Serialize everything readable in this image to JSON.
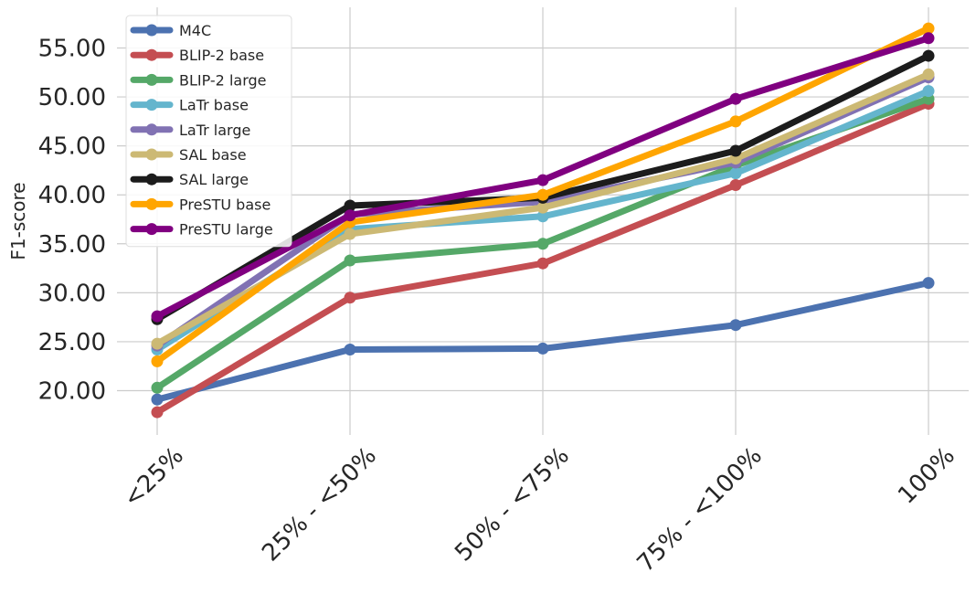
{
  "chart_data": {
    "type": "line",
    "categories": [
      "<25%",
      "25% - <50%",
      "50% - <75%",
      "75% - <100%",
      "100%"
    ],
    "ylabel": "F1-score",
    "xlabel": "",
    "ylim": [
      15.8,
      58.0
    ],
    "yticks": [
      "20.00",
      "25.00",
      "30.00",
      "35.00",
      "40.00",
      "45.00",
      "50.00",
      "55.00"
    ],
    "ytick_values": [
      20,
      25,
      30,
      35,
      40,
      45,
      50,
      55
    ],
    "grid": true,
    "legend_position": "top-left",
    "series": [
      {
        "name": "M4C",
        "color": "#4c72b0",
        "values": [
          19.1,
          24.2,
          24.3,
          26.7,
          31.0
        ]
      },
      {
        "name": "BLIP-2 base",
        "color": "#c44e52",
        "values": [
          17.8,
          29.5,
          33.0,
          41.0,
          49.3
        ]
      },
      {
        "name": "BLIP-2 large",
        "color": "#55a868",
        "values": [
          20.3,
          33.3,
          35.0,
          43.0,
          49.8
        ]
      },
      {
        "name": "LaTr base",
        "color": "#64b5cd",
        "values": [
          24.2,
          36.5,
          37.8,
          42.2,
          50.6
        ]
      },
      {
        "name": "LaTr large",
        "color": "#8172b3",
        "values": [
          24.6,
          38.0,
          39.3,
          43.3,
          52.0
        ]
      },
      {
        "name": "SAL base",
        "color": "#ccb974",
        "values": [
          24.8,
          36.0,
          38.7,
          43.7,
          52.3
        ]
      },
      {
        "name": "SAL large",
        "color": "#1c1c1c",
        "values": [
          27.3,
          38.9,
          39.7,
          44.5,
          54.2
        ]
      },
      {
        "name": "PreSTU base",
        "color": "#ffa500",
        "values": [
          23.0,
          37.2,
          40.0,
          47.5,
          57.0
        ]
      },
      {
        "name": "PreSTU large",
        "color": "#800080",
        "values": [
          27.6,
          37.9,
          41.5,
          49.8,
          56.0
        ]
      }
    ]
  }
}
